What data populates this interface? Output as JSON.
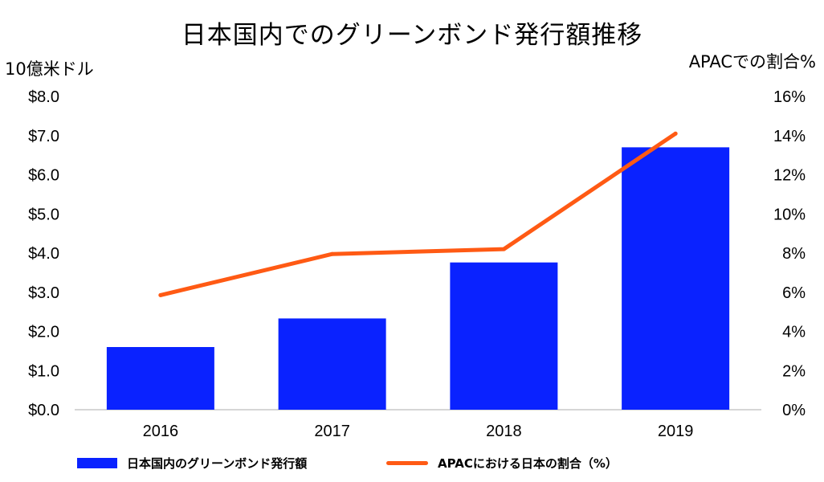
{
  "chart_data": {
    "type": "bar+line",
    "title": "日本国内でのグリーンボンド発行額推移",
    "categories": [
      "2016",
      "2017",
      "2018",
      "2019"
    ],
    "ylabel_left": "10億米ドル",
    "ylabel_right": "APACでの割合%",
    "ylim_left": [
      0,
      8
    ],
    "ylim_right": [
      0,
      16
    ],
    "yticks_left": [
      "$0.0",
      "$1.0",
      "$2.0",
      "$3.0",
      "$4.0",
      "$5.0",
      "$6.0",
      "$7.0",
      "$8.0"
    ],
    "yticks_right": [
      "0%",
      "2%",
      "4%",
      "6%",
      "8%",
      "10%",
      "12%",
      "14%",
      "16%"
    ],
    "series": [
      {
        "name": "日本国内のグリーンボンド発行額",
        "type": "bar",
        "axis": "left",
        "color": "#0a22ff",
        "values": [
          1.6,
          2.33,
          3.76,
          6.7
        ]
      },
      {
        "name": "APACにおける日本の割合（%）",
        "type": "line",
        "axis": "right",
        "color": "#ff5a14",
        "values": [
          5.85,
          7.95,
          8.2,
          14.1
        ]
      }
    ],
    "grid": false,
    "legend_position": "bottom"
  }
}
